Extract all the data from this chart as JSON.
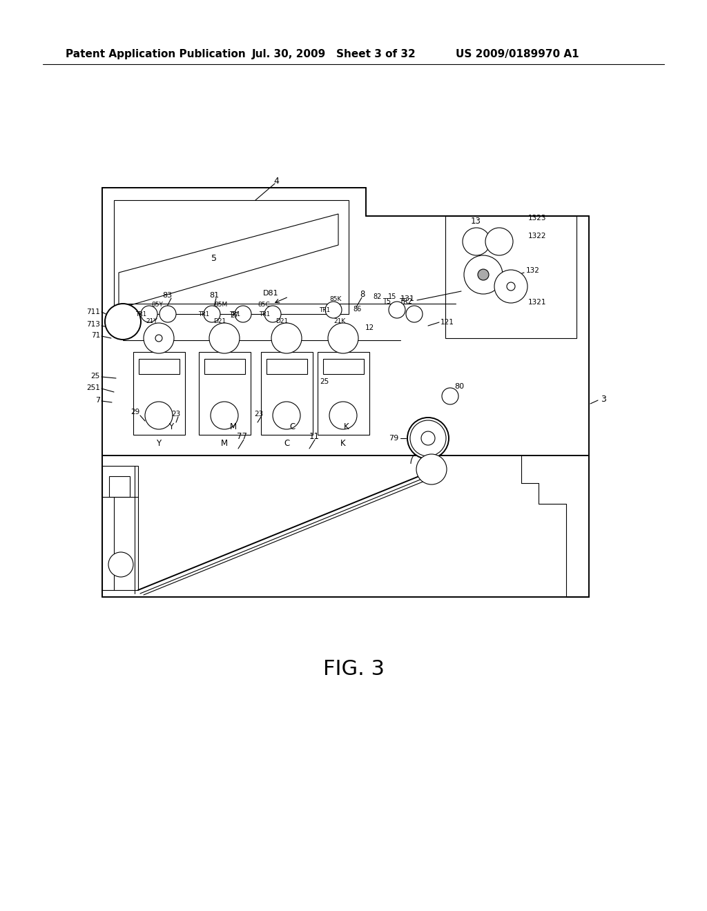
{
  "header_left": "Patent Application Publication",
  "header_center": "Jul. 30, 2009   Sheet 3 of 32",
  "header_right": "US 2009/0189970 A1",
  "figure_label": "FIG. 3",
  "bg_color": "#ffffff",
  "line_color": "#000000",
  "header_fontsize": 11,
  "fig_label_fontsize": 22,
  "page_width": 10.24,
  "page_height": 13.2
}
